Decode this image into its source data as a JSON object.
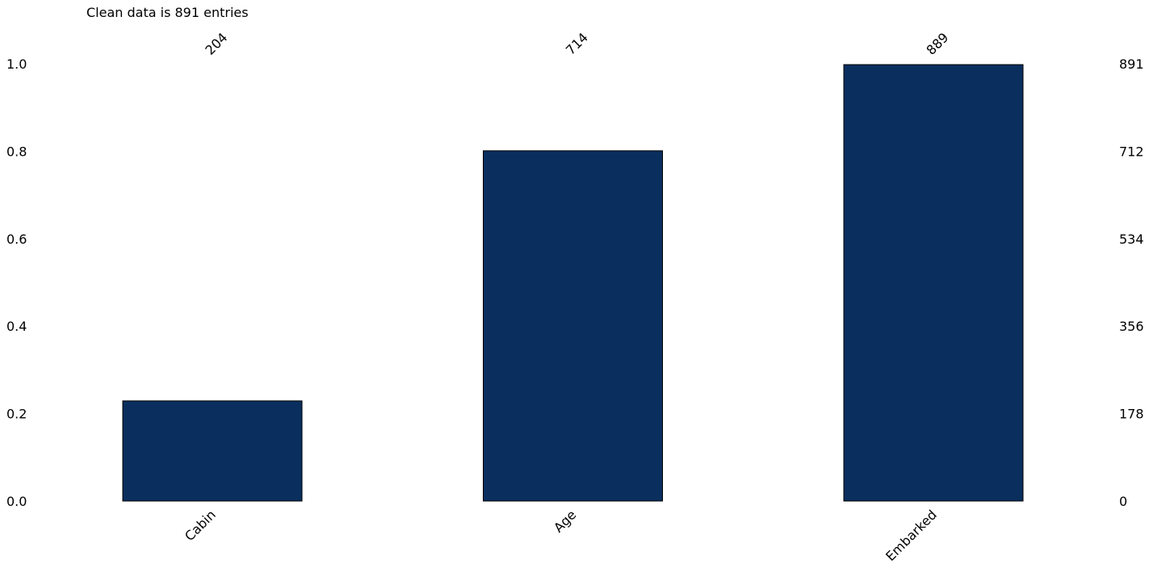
{
  "chart_data": {
    "type": "bar",
    "title": "Clean data is 891 entries",
    "xlabel": "",
    "ylabel": "",
    "categories": [
      "Cabin",
      "Age",
      "Embarked"
    ],
    "values": [
      0.229,
      0.801,
      0.998
    ],
    "counts": [
      "204",
      "714",
      "889"
    ],
    "ylim": [
      0,
      1.0
    ],
    "left_ticks": [
      "0.0",
      "0.2",
      "0.4",
      "0.6",
      "0.8",
      "1.0"
    ],
    "right_ticks": [
      "0",
      "178",
      "356",
      "534",
      "712",
      "891"
    ],
    "bar_color": "#0a2f5f",
    "grid": false
  }
}
